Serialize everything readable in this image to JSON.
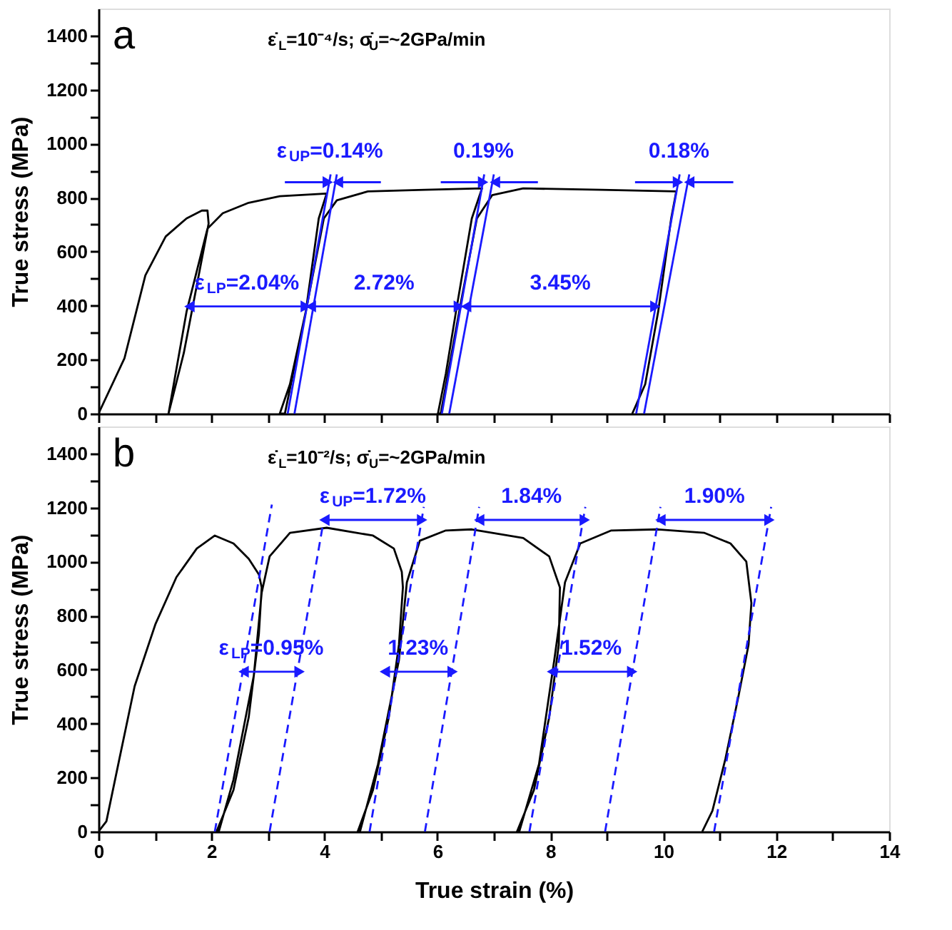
{
  "chart_data": [
    {
      "type": "line",
      "title": "a",
      "subtitle": "ε̇$_{L}$=10⁻⁴/s; σ̇$_{U}$=~2GPa/min",
      "ylabel": "True stress (MPa)",
      "xlim": [
        0,
        14
      ],
      "ylim": [
        0,
        1500
      ],
      "xticks": [
        0,
        {
          "value": 1,
          "label": null
        },
        2,
        {
          "value": 3,
          "label": null
        },
        4,
        {
          "value": 5,
          "label": null
        },
        6,
        {
          "value": 7,
          "label": null
        },
        8,
        {
          "value": 9,
          "label": null
        },
        10,
        {
          "value": 11,
          "label": null
        },
        12,
        {
          "value": 13,
          "label": null
        },
        14
      ],
      "yticks": [
        0,
        {
          "value": 100,
          "label": null
        },
        200,
        {
          "value": 300,
          "label": null
        },
        400,
        {
          "value": 500,
          "label": null
        },
        600,
        {
          "value": 700,
          "label": null
        },
        800,
        {
          "value": 900,
          "label": null
        },
        1000,
        {
          "value": 1100,
          "label": null
        },
        1200,
        {
          "value": 1300,
          "label": null
        },
        1400
      ],
      "tick_labels": "y",
      "series": [
        {
          "color": "#000000",
          "x": [
            0,
            0.46,
            0.83,
            1.19,
            1.56,
            1.83,
            1.93,
            1.95,
            1.74,
            1.51,
            1.24,
            1.56,
            1.93,
            2.2,
            2.66,
            3.21,
            4.04,
            3.9,
            3.67,
            3.39,
            3.21,
            3.3,
            3.67,
            3.99,
            4.22,
            4.77,
            5.78,
            6.79,
            6.61,
            6.33,
            6.15,
            6.01,
            6.06,
            6.42,
            6.7,
            6.97,
            7.52,
            8.9,
            10.23,
            10.14,
            9.91,
            9.68,
            9.5,
            9.45
          ],
          "values": [
            0,
            205,
            512,
            656,
            723,
            752,
            752,
            704,
            474,
            224,
            0,
            378,
            685,
            742,
            781,
            805,
            815,
            723,
            378,
            109,
            0,
            0,
            378,
            723,
            790,
            823,
            829,
            834,
            723,
            378,
            148,
            0,
            0,
            416,
            723,
            809,
            834,
            829,
            823,
            723,
            378,
            109,
            23,
            0
          ]
        },
        {
          "color": "#1a1aff",
          "x": [
            3.35,
            4.11
          ],
          "values": [
            0,
            886
          ]
        },
        {
          "color": "#1a1aff",
          "x": [
            3.47,
            4.22
          ],
          "values": [
            0,
            886
          ]
        },
        {
          "color": "#1a1aff",
          "x": [
            6.08,
            6.83
          ],
          "values": [
            0,
            886
          ]
        },
        {
          "color": "#1a1aff",
          "x": [
            6.21,
            7.0
          ],
          "values": [
            0,
            886
          ]
        },
        {
          "color": "#1a1aff",
          "x": [
            9.52,
            10.29
          ],
          "values": [
            0,
            886
          ]
        },
        {
          "color": "#1a1aff",
          "x": [
            9.66,
            10.46
          ],
          "values": [
            0,
            886
          ]
        },
        {
          "color": "#1a1aff",
          "marker": "triangle",
          "x": [
            3.3,
            4.06
          ],
          "values": [
            857,
            857
          ]
        },
        {
          "color": "#1a1aff",
          "marker": "triangle",
          "x": [
            5.0,
            4.24
          ],
          "values": [
            857,
            857
          ]
        },
        {
          "color": "#1a1aff",
          "marker": "triangle",
          "x": [
            6.06,
            6.81
          ],
          "values": [
            857,
            857
          ]
        },
        {
          "color": "#1a1aff",
          "marker": "triangle",
          "x": [
            7.78,
            7.02
          ],
          "values": [
            857,
            857
          ]
        },
        {
          "color": "#1a1aff",
          "marker": "triangle",
          "x": [
            9.5,
            10.26
          ],
          "values": [
            857,
            857
          ]
        },
        {
          "color": "#1a1aff",
          "marker": "triangle",
          "x": [
            11.24,
            10.46
          ],
          "values": [
            857,
            857
          ]
        },
        {
          "color": "#1a1aff",
          "marker": "triangle",
          "x": [
            1.61,
            2.64,
            3.67
          ],
          "values": [
            397,
            397,
            397
          ]
        },
        {
          "color": "#1a1aff",
          "marker": "triangle",
          "x": [
            3.76,
            5.07,
            6.38
          ],
          "values": [
            397,
            397,
            397
          ]
        },
        {
          "color": "#1a1aff",
          "marker": "triangle",
          "x": [
            6.51,
            8.19,
            9.86
          ],
          "values": [
            397,
            397,
            397
          ]
        }
      ],
      "annotations": [
        {
          "text": "ε$_{UP}$=0.14%",
          "x": 4.11,
          "y": 886
        },
        {
          "text": "0.19%",
          "x": 6.83,
          "y": 886
        },
        {
          "text": "0.18%",
          "x": 10.29,
          "y": 886
        },
        {
          "text": "ε$_{LP}$=2.04%",
          "x": 2.64,
          "y": 397
        },
        {
          "text": "2.72%",
          "x": 5.07,
          "y": 397
        },
        {
          "text": "3.45%",
          "x": 8.19,
          "y": 397
        }
      ]
    },
    {
      "type": "line",
      "title": "b",
      "subtitle": "ε̇$_{L}$=10⁻²/s; σ̇$_{U}$=~2GPa/min",
      "xlabel": "True strain (%)",
      "ylabel": "True stress (MPa)",
      "xlim": [
        0,
        14
      ],
      "ylim": [
        0,
        1500
      ],
      "xticks": [
        0,
        {
          "value": 1,
          "label": null
        },
        2,
        {
          "value": 3,
          "label": null
        },
        4,
        {
          "value": 5,
          "label": null
        },
        6,
        {
          "value": 7,
          "label": null
        },
        8,
        {
          "value": 9,
          "label": null
        },
        10,
        {
          "value": 11,
          "label": null
        },
        12,
        {
          "value": 13,
          "label": null
        },
        14
      ],
      "yticks": [
        0,
        {
          "value": 100,
          "label": null
        },
        200,
        {
          "value": 300,
          "label": null
        },
        400,
        {
          "value": 500,
          "label": null
        },
        600,
        {
          "value": 700,
          "label": null
        },
        800,
        {
          "value": 900,
          "label": null
        },
        1000,
        {
          "value": 1100,
          "label": null
        },
        1200,
        {
          "value": 1300,
          "label": null
        },
        1400
      ],
      "series": [
        {
          "color": "#000000",
          "x": [
            0,
            0.14,
            0.37,
            0.64,
            1.01,
            1.38,
            1.74,
            2.06,
            2.39,
            2.66,
            2.84,
            2.89,
            2.84,
            2.66,
            2.39,
            2.09,
            2.13,
            2.39,
            2.75,
            2.89,
            3.03,
            3.39,
            4.04,
            4.86,
            5.23,
            5.37,
            5.39,
            5.32,
            5.14,
            4.86,
            4.59,
            4.63,
            4.95,
            5.32,
            5.46,
            5.69,
            6.15,
            6.61,
            7.52,
            7.98,
            8.17,
            8.15,
            7.98,
            7.71,
            7.41,
            7.45,
            7.8,
            8.07,
            8.26,
            8.53,
            9.08,
            9.91,
            10.73,
            11.19,
            11.47,
            11.56,
            11.51,
            11.33,
            11.1,
            10.87,
            10.69
          ],
          "values": [
            0,
            38,
            269,
            538,
            769,
            942,
            1048,
            1096,
            1067,
            1010,
            952,
            904,
            731,
            423,
            154,
            0,
            0,
            192,
            577,
            885,
            1019,
            1106,
            1125,
            1096,
            1048,
            962,
            904,
            692,
            423,
            154,
            0,
            0,
            250,
            635,
            923,
            1077,
            1115,
            1119,
            1087,
            1019,
            904,
            692,
            423,
            154,
            0,
            0,
            250,
            635,
            923,
            1067,
            1115,
            1119,
            1106,
            1067,
            1000,
            846,
            692,
            500,
            269,
            77,
            0
          ]
        },
        {
          "color": "#1a1aff",
          "line_style": "dashed",
          "x": [
            2.06,
            3.07
          ],
          "values": [
            0,
            1211
          ]
        },
        {
          "color": "#1a1aff",
          "line_style": "dashed",
          "x": [
            3.03,
            3.98
          ],
          "values": [
            0,
            1144
          ]
        },
        {
          "color": "#1a1aff",
          "line_style": "dashed",
          "x": [
            4.8,
            5.76
          ],
          "values": [
            0,
            1202
          ]
        },
        {
          "color": "#1a1aff",
          "line_style": "dashed",
          "x": [
            5.78,
            6.74
          ],
          "values": [
            0,
            1202
          ]
        },
        {
          "color": "#1a1aff",
          "line_style": "dashed",
          "x": [
            7.63,
            8.62
          ],
          "values": [
            0,
            1202
          ]
        },
        {
          "color": "#1a1aff",
          "line_style": "dashed",
          "x": [
            8.97,
            9.95
          ],
          "values": [
            0,
            1202
          ]
        },
        {
          "color": "#1a1aff",
          "line_style": "dashed",
          "x": [
            10.9,
            11.91
          ],
          "values": [
            0,
            1202
          ]
        },
        {
          "color": "#1a1aff",
          "marker": "triangle",
          "x": [
            4.0,
            4.87,
            5.73
          ],
          "values": [
            1154,
            1154,
            1154
          ]
        },
        {
          "color": "#1a1aff",
          "marker": "triangle",
          "x": [
            6.74,
            7.68,
            8.61
          ],
          "values": [
            1154,
            1154,
            1154
          ]
        },
        {
          "color": "#1a1aff",
          "marker": "triangle",
          "x": [
            9.95,
            10.92,
            11.88
          ],
          "values": [
            1154,
            1154,
            1154
          ]
        },
        {
          "color": "#1a1aff",
          "marker": "triangle",
          "x": [
            2.57,
            3.07,
            3.56
          ],
          "values": [
            592,
            592,
            592
          ]
        },
        {
          "color": "#1a1aff",
          "marker": "triangle",
          "x": [
            5.07,
            5.67,
            6.27
          ],
          "values": [
            592,
            592,
            592
          ]
        },
        {
          "color": "#1a1aff",
          "marker": "triangle",
          "x": [
            8.03,
            8.74,
            9.45
          ],
          "values": [
            592,
            592,
            592
          ]
        }
      ],
      "annotations": [
        {
          "text": "ε$_{UP}$=1.72%",
          "x": 4.87,
          "y": 1154
        },
        {
          "text": "1.84%",
          "x": 7.68,
          "y": 1154
        },
        {
          "text": "1.90%",
          "x": 10.92,
          "y": 1154
        },
        {
          "text": "ε$_{LP}$=0.95%",
          "x": 3.07,
          "y": 592
        },
        {
          "text": "1.23%",
          "x": 5.67,
          "y": 592
        },
        {
          "text": "1.52%",
          "x": 8.74,
          "y": 592
        }
      ]
    }
  ]
}
